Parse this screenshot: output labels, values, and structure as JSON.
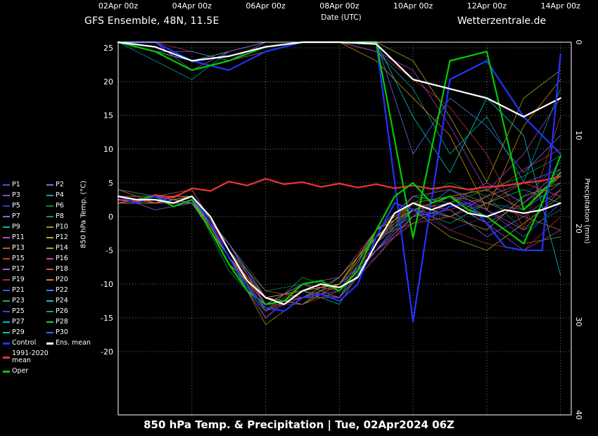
{
  "header": {
    "title": "GFS Ensemble, 48N, 11.5E",
    "brand": "Wetterzentrale.de",
    "axis_top_label": "Date (UTC)",
    "dates": [
      "02Apr 00z",
      "04Apr 00z",
      "06Apr 00z",
      "08Apr 00z",
      "10Apr 00z",
      "12Apr 00z",
      "14Apr 00z"
    ]
  },
  "footer": {
    "title": "850 hPa Temp. & Precipitation | Tue, 02Apr2024 06Z"
  },
  "legend": {
    "items": [
      {
        "label": "P1",
        "color": "#4455ee"
      },
      {
        "label": "P2",
        "color": "#6677ff"
      },
      {
        "label": "P3",
        "color": "#9944cc"
      },
      {
        "label": "P4",
        "color": "#00aaaa"
      },
      {
        "label": "P5",
        "color": "#3333cc"
      },
      {
        "label": "P6",
        "color": "#008855"
      },
      {
        "label": "P7",
        "color": "#8866dd"
      },
      {
        "label": "P8",
        "color": "#00aa44"
      },
      {
        "label": "P9",
        "color": "#00bb99"
      },
      {
        "label": "P10",
        "color": "#999900"
      },
      {
        "label": "P11",
        "color": "#aa55cc"
      },
      {
        "label": "P12",
        "color": "#bbaa22"
      },
      {
        "label": "P13",
        "color": "#cc5544"
      },
      {
        "label": "P14",
        "color": "#aaaa22"
      },
      {
        "label": "P15",
        "color": "#cc3333"
      },
      {
        "label": "P16",
        "color": "#cc44bb"
      },
      {
        "label": "P17",
        "color": "#9966dd"
      },
      {
        "label": "P18",
        "color": "#dd5522"
      },
      {
        "label": "P19",
        "color": "#bb2233"
      },
      {
        "label": "P20",
        "color": "#dd8811"
      },
      {
        "label": "P21",
        "color": "#3355ee"
      },
      {
        "label": "P22",
        "color": "#5577ff"
      },
      {
        "label": "P23",
        "color": "#22aa55"
      },
      {
        "label": "P24",
        "color": "#00cccc"
      },
      {
        "label": "P25",
        "color": "#3344dd"
      },
      {
        "label": "P26",
        "color": "#00aa88"
      },
      {
        "label": "P27",
        "color": "#00bbcc"
      },
      {
        "label": "P28",
        "color": "#22cc44"
      },
      {
        "label": "P29",
        "color": "#00ccaa"
      },
      {
        "label": "P30",
        "color": "#4466ff"
      },
      {
        "label": "Control",
        "color": "#2233ff",
        "bold": true
      },
      {
        "label": "Ens. mean",
        "color": "#ffffff",
        "bold": true
      },
      {
        "label": "1991-2020 mean",
        "color": "#ee3333",
        "bold": true,
        "full": true
      },
      {
        "label": "Oper",
        "color": "#00cc00",
        "bold": true
      }
    ]
  },
  "chart_data": {
    "type": "line",
    "title": "GFS Ensemble, 48N, 11.5E",
    "x_axis": {
      "label": "Date (UTC)",
      "start": "02Apr 00z",
      "end": "14Apr 00z",
      "unit": "hours from 02Apr 00z",
      "max_hour": 295,
      "gridline_every_hours": 48
    },
    "y_left": {
      "label": "850 hPa Temp. (°C)",
      "ticks": [
        25,
        20,
        15,
        10,
        5,
        0,
        -5,
        -10,
        -15,
        -20
      ],
      "range": [
        -24,
        25.8
      ],
      "grid": true
    },
    "y_right": {
      "label": "Precipitation (mm)",
      "ticks": [
        0,
        10,
        20,
        30,
        40
      ],
      "range": [
        0,
        40
      ],
      "direction": "downward-from-top"
    },
    "legend_position": "left",
    "temp_main": [
      {
        "name": "1991-2020 mean",
        "color": "#ee3333",
        "width": 2.2,
        "step": 12,
        "values": [
          2.5,
          2.2,
          3.2,
          2.8,
          4.2,
          3.8,
          5.2,
          4.6,
          5.6,
          4.8,
          5.1,
          4.4,
          4.9,
          4.3,
          4.8,
          4.2,
          4.6,
          4.1,
          4.5,
          4,
          4.4,
          4.6,
          5,
          5.3,
          6
        ]
      },
      {
        "name": "Oper",
        "color": "#00cc00",
        "width": 2.2,
        "step": 12,
        "values": [
          3,
          2.5,
          3,
          1.5,
          2.5,
          -2,
          -7,
          -11,
          -13,
          -12.5,
          -10,
          -9.5,
          -11,
          -8,
          -2,
          3,
          5,
          2,
          3,
          1,
          0,
          -2,
          -4,
          2,
          9
        ]
      },
      {
        "name": "Control",
        "color": "#2233ff",
        "width": 2.2,
        "step": 12,
        "values": [
          3,
          2,
          3,
          2,
          3,
          -1,
          -6,
          -10.5,
          -13.5,
          -14,
          -12,
          -11.5,
          -12.5,
          -10,
          -3,
          2,
          1,
          0,
          1.5,
          2,
          -1,
          -4.5,
          -5,
          -5,
          24
        ]
      },
      {
        "name": "Ens. mean",
        "color": "#ffffff",
        "width": 2.2,
        "step": 12,
        "values": [
          3,
          2.5,
          2.5,
          2,
          3,
          0,
          -5,
          -9.5,
          -12,
          -13,
          -11,
          -10,
          -10.5,
          -9,
          -4,
          0.5,
          2,
          1,
          2,
          0.5,
          0,
          1,
          0.5,
          1,
          2
        ]
      }
    ],
    "temp_members": [
      {
        "name": "P1",
        "color": "#4455ee",
        "step": 24,
        "values": [
          3,
          2,
          3,
          -4,
          -12,
          -11,
          -10,
          -5,
          2,
          3,
          1,
          -3,
          2
        ]
      },
      {
        "name": "P2",
        "color": "#6677ff",
        "step": 24,
        "values": [
          4,
          3,
          2,
          -6,
          -13,
          -10,
          -12,
          -2,
          1,
          0,
          3,
          5,
          7
        ]
      },
      {
        "name": "P3",
        "color": "#9944cc",
        "step": 24,
        "values": [
          3,
          2,
          4,
          -5,
          -14,
          -12,
          -11,
          -4,
          3,
          2,
          -1,
          -5,
          -2
        ]
      },
      {
        "name": "P4",
        "color": "#00aaaa",
        "step": 24,
        "values": [
          2,
          3,
          3,
          -7,
          -12,
          -13,
          -9,
          -3,
          0,
          4,
          2,
          1,
          5
        ]
      },
      {
        "name": "P5",
        "color": "#3333cc",
        "step": 24,
        "values": [
          3,
          2,
          2,
          -5,
          -15,
          -11,
          -10,
          -6,
          1,
          -2,
          0,
          3,
          8
        ]
      },
      {
        "name": "P6",
        "color": "#008855",
        "step": 24,
        "values": [
          4,
          3,
          3,
          -4,
          -11,
          -10,
          -12,
          -3,
          2,
          5,
          3,
          -2,
          1
        ]
      },
      {
        "name": "P7",
        "color": "#8866dd",
        "step": 24,
        "values": [
          3,
          1,
          2,
          -6,
          -13,
          -12,
          -10,
          -5,
          0,
          1,
          -3,
          0,
          4
        ]
      },
      {
        "name": "P8",
        "color": "#00aa44",
        "step": 24,
        "values": [
          2,
          2,
          3,
          -8,
          -14,
          -9,
          -11,
          -2,
          3,
          2,
          4,
          6,
          9
        ]
      },
      {
        "name": "P9",
        "color": "#00bb99",
        "step": 24,
        "values": [
          3,
          3,
          4,
          -5,
          -12,
          -11,
          -13,
          -4,
          1,
          -1,
          2,
          4,
          2
        ]
      },
      {
        "name": "P10",
        "color": "#999900",
        "step": 24,
        "values": [
          4,
          2,
          3,
          -6,
          -16,
          -12,
          -9,
          -3,
          2,
          3,
          0,
          -4,
          -3
        ]
      },
      {
        "name": "P11",
        "color": "#aa55cc",
        "step": 24,
        "values": [
          3,
          2,
          2,
          -4,
          -13,
          -10,
          -11,
          -5,
          -1,
          2,
          5,
          2,
          6
        ]
      },
      {
        "name": "P12",
        "color": "#bbaa22",
        "step": 24,
        "values": [
          2,
          3,
          3,
          -7,
          -12,
          -13,
          -10,
          -2,
          2,
          0,
          -2,
          3,
          5
        ]
      },
      {
        "name": "P13",
        "color": "#cc5544",
        "step": 24,
        "values": [
          3,
          2,
          4,
          -5,
          -11,
          -12,
          -12,
          -6,
          0,
          3,
          2,
          0,
          -2
        ]
      },
      {
        "name": "P14",
        "color": "#aaaa22",
        "step": 24,
        "values": [
          3,
          3,
          2,
          -6,
          -14,
          -11,
          -10,
          -3,
          1,
          -3,
          -5,
          -1,
          3
        ]
      },
      {
        "name": "P15",
        "color": "#cc3333",
        "step": 24,
        "values": [
          4,
          2,
          3,
          -5,
          -13,
          -13,
          -11,
          -4,
          2,
          1,
          3,
          7,
          10
        ]
      },
      {
        "name": "P16",
        "color": "#cc44bb",
        "step": 24,
        "values": [
          3,
          2,
          3,
          -7,
          -15,
          -10,
          -9,
          -2,
          3,
          4,
          1,
          -2,
          4
        ]
      },
      {
        "name": "P17",
        "color": "#9966dd",
        "step": 24,
        "values": [
          2,
          3,
          2,
          -4,
          -12,
          -11,
          -12,
          -5,
          1,
          2,
          -1,
          2,
          7
        ]
      },
      {
        "name": "P18",
        "color": "#dd5522",
        "step": 24,
        "values": [
          3,
          2,
          3,
          -6,
          -13,
          -12,
          -10,
          -3,
          -1,
          0,
          2,
          5,
          3
        ]
      },
      {
        "name": "P19",
        "color": "#bb2233",
        "step": 24,
        "values": [
          3,
          3,
          4,
          -5,
          -14,
          -10,
          -11,
          -4,
          2,
          -2,
          -4,
          -5,
          0
        ]
      },
      {
        "name": "P20",
        "color": "#dd8811",
        "step": 24,
        "values": [
          2,
          2,
          3,
          -6,
          -12,
          -11,
          -10,
          -2,
          1,
          3,
          4,
          1,
          6
        ]
      }
    ],
    "precip_series": [
      {
        "name": "precip-member-gold",
        "color": "#bbaa22",
        "width": 0.9,
        "step": 24,
        "values": [
          0,
          1,
          3,
          2,
          1,
          0,
          0,
          0,
          2,
          8,
          15,
          6,
          3
        ]
      },
      {
        "name": "precip-member-teal",
        "color": "#00aaaa",
        "width": 0.9,
        "step": 24,
        "values": [
          0,
          2,
          4,
          1,
          0,
          0,
          0,
          1,
          5,
          12,
          8,
          15,
          5
        ]
      },
      {
        "name": "precip-member-orange",
        "color": "#dd8811",
        "width": 0.9,
        "step": 24,
        "values": [
          0,
          1,
          2,
          1,
          0,
          0,
          0,
          2,
          6,
          10,
          18,
          9,
          4
        ]
      },
      {
        "name": "precip-member-red",
        "color": "#cc3333",
        "width": 0.9,
        "step": 24,
        "values": [
          0,
          0,
          1,
          2,
          1,
          0,
          0,
          1,
          4,
          7,
          12,
          20,
          8
        ]
      },
      {
        "name": "precip-member-cyan",
        "color": "#00cccc",
        "width": 0.9,
        "step": 24,
        "values": [
          0,
          1,
          2,
          1,
          0,
          0,
          0,
          0,
          8,
          14,
          6,
          10,
          25
        ]
      },
      {
        "name": "precip-member-purple",
        "color": "#9944cc",
        "width": 0.9,
        "step": 24,
        "values": [
          0,
          0,
          3,
          1,
          0,
          0,
          0,
          1,
          3,
          9,
          16,
          12,
          6
        ]
      },
      {
        "name": "precip-member-blue",
        "color": "#5577ff",
        "width": 0.9,
        "step": 24,
        "values": [
          0,
          1,
          1,
          2,
          0,
          0,
          0,
          0,
          12,
          6,
          9,
          14,
          10
        ]
      },
      {
        "name": "Control precip",
        "color": "#2233ff",
        "width": 2.2,
        "step": 24,
        "values": [
          0,
          0,
          2,
          3,
          1,
          0,
          0,
          0,
          30,
          4,
          2,
          8,
          12
        ]
      },
      {
        "name": "Oper precip",
        "color": "#00cc00",
        "width": 2.2,
        "step": 24,
        "values": [
          0,
          1,
          3,
          2,
          0.5,
          0,
          0,
          0,
          21,
          2,
          1,
          18,
          14
        ]
      },
      {
        "name": "Ens. mean precip",
        "color": "#ffffff",
        "width": 2.2,
        "step": 24,
        "values": [
          0,
          0.5,
          2,
          1.5,
          0.5,
          0,
          0,
          0.2,
          4,
          5,
          6,
          8,
          6
        ]
      }
    ]
  }
}
